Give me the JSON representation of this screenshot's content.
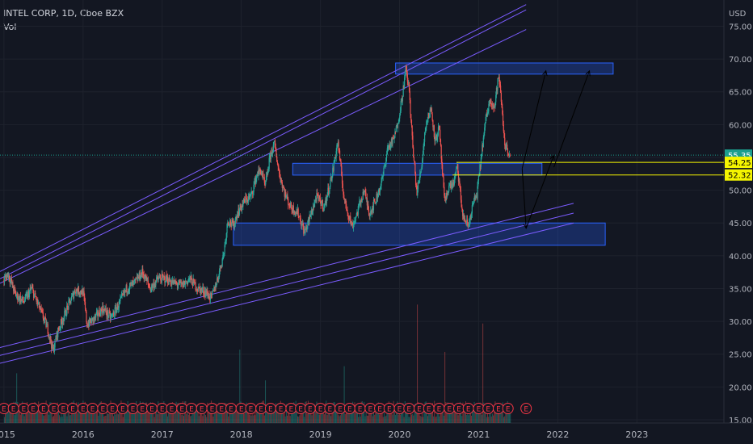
{
  "header": {
    "symbol_line": "INTEL CORP, 1D, Cboe BZX",
    "indicator": "Vol"
  },
  "colors": {
    "background": "#131722",
    "grid": "#1e222d",
    "axis_text": "#b2b5be",
    "up": "#26a69a",
    "down": "#ef5350",
    "channel": "#7b5cff",
    "zone": "#2962ff",
    "level_line": "#f5f500",
    "price_label_bg": "#1b9e8e",
    "level_label_bg": "#f5f500",
    "earnings_ring": "#f23645",
    "arrow": "#000000"
  },
  "chart_data": {
    "type": "candlestick",
    "currency": "USD",
    "x_tick_labels": [
      "2015",
      "2016",
      "2017",
      "2018",
      "2019",
      "2020",
      "2021",
      "2022",
      "2023"
    ],
    "y_tick_labels": [
      "15.00",
      "20.00",
      "25.00",
      "30.00",
      "35.00",
      "40.00",
      "45.00",
      "50.00",
      "55.00",
      "60.00",
      "65.00",
      "70.00",
      "75.00"
    ],
    "ylim": [
      14.5,
      79
    ],
    "xlim": [
      2014.95,
      2024.1
    ],
    "current_price": "55.35",
    "horizontal_levels": [
      {
        "label": "54.25",
        "value": 54.25,
        "x_start": 2020.72
      },
      {
        "label": "52.32",
        "value": 52.32,
        "x_start": 2020.67
      }
    ],
    "zones": [
      {
        "name": "resistance",
        "x": [
          2019.95,
          2022.7
        ],
        "y": [
          67.7,
          69.4
        ]
      },
      {
        "name": "middle",
        "x": [
          2018.65,
          2021.8
        ],
        "y": [
          52.3,
          54.1
        ]
      },
      {
        "name": "support",
        "x": [
          2017.9,
          2022.6
        ],
        "y": [
          41.6,
          45.0
        ]
      }
    ],
    "trend_lines": [
      {
        "x": [
          2014.95,
          2021.6
        ],
        "y": [
          36.5,
          77.5
        ]
      },
      {
        "x": [
          2014.95,
          2021.6
        ],
        "y": [
          37.6,
          78.3
        ]
      },
      {
        "x": [
          2014.95,
          2021.6
        ],
        "y": [
          35.8,
          74.5
        ]
      },
      {
        "x": [
          2014.95,
          2022.2
        ],
        "y": [
          26.0,
          48.0
        ]
      },
      {
        "x": [
          2014.95,
          2022.2
        ],
        "y": [
          24.8,
          46.5
        ]
      },
      {
        "x": [
          2014.95,
          2022.2
        ],
        "y": [
          23.6,
          45.0
        ]
      }
    ],
    "projection_arrows": [
      {
        "x": [
          2021.55,
          2021.85
        ],
        "y": [
          53.3,
          68.2
        ]
      },
      {
        "x": [
          2021.55,
          2021.6
        ],
        "y": [
          53.3,
          44.2
        ]
      },
      {
        "x": [
          2021.6,
          2021.95
        ],
        "y": [
          44.2,
          55.3
        ]
      },
      {
        "x": [
          2021.95,
          2022.4
        ],
        "y": [
          53.5,
          68.2
        ]
      }
    ],
    "price_path": [
      [
        2015.0,
        36.3
      ],
      [
        2015.05,
        37.3
      ],
      [
        2015.15,
        34.0
      ],
      [
        2015.25,
        33.0
      ],
      [
        2015.35,
        35.0
      ],
      [
        2015.45,
        32.0
      ],
      [
        2015.55,
        29.0
      ],
      [
        2015.62,
        25.5
      ],
      [
        2015.68,
        28.5
      ],
      [
        2015.8,
        32.0
      ],
      [
        2015.9,
        34.8
      ],
      [
        2016.0,
        34.5
      ],
      [
        2016.05,
        29.5
      ],
      [
        2016.15,
        30.5
      ],
      [
        2016.25,
        32.0
      ],
      [
        2016.35,
        30.5
      ],
      [
        2016.45,
        32.5
      ],
      [
        2016.55,
        35.0
      ],
      [
        2016.65,
        35.8
      ],
      [
        2016.75,
        37.5
      ],
      [
        2016.85,
        35.0
      ],
      [
        2016.95,
        36.5
      ],
      [
        2017.05,
        36.5
      ],
      [
        2017.15,
        35.8
      ],
      [
        2017.25,
        35.5
      ],
      [
        2017.35,
        36.5
      ],
      [
        2017.45,
        35.0
      ],
      [
        2017.55,
        34.5
      ],
      [
        2017.62,
        33.5
      ],
      [
        2017.7,
        36.5
      ],
      [
        2017.78,
        40.5
      ],
      [
        2017.83,
        45.5
      ],
      [
        2017.9,
        44.5
      ],
      [
        2017.95,
        46.5
      ],
      [
        2018.05,
        48.5
      ],
      [
        2018.12,
        49.0
      ],
      [
        2018.2,
        52.5
      ],
      [
        2018.25,
        53.0
      ],
      [
        2018.3,
        50.5
      ],
      [
        2018.37,
        55.5
      ],
      [
        2018.42,
        57.0
      ],
      [
        2018.48,
        52.5
      ],
      [
        2018.55,
        49.5
      ],
      [
        2018.62,
        47.5
      ],
      [
        2018.72,
        46.5
      ],
      [
        2018.8,
        43.5
      ],
      [
        2018.87,
        46.0
      ],
      [
        2018.95,
        49.0
      ],
      [
        2019.05,
        47.5
      ],
      [
        2019.15,
        52.5
      ],
      [
        2019.22,
        57.5
      ],
      [
        2019.3,
        48.5
      ],
      [
        2019.4,
        44.5
      ],
      [
        2019.45,
        46.0
      ],
      [
        2019.55,
        50.0
      ],
      [
        2019.62,
        46.5
      ],
      [
        2019.7,
        48.5
      ],
      [
        2019.78,
        51.5
      ],
      [
        2019.85,
        56.5
      ],
      [
        2019.92,
        57.5
      ],
      [
        2019.97,
        59.8
      ],
      [
        2020.03,
        64.0
      ],
      [
        2020.08,
        68.5
      ],
      [
        2020.12,
        65.5
      ],
      [
        2020.17,
        56.0
      ],
      [
        2020.22,
        49.5
      ],
      [
        2020.28,
        54.0
      ],
      [
        2020.33,
        60.0
      ],
      [
        2020.4,
        62.5
      ],
      [
        2020.45,
        57.5
      ],
      [
        2020.5,
        59.5
      ],
      [
        2020.57,
        48.0
      ],
      [
        2020.62,
        50.5
      ],
      [
        2020.68,
        51.0
      ],
      [
        2020.73,
        53.5
      ],
      [
        2020.8,
        46.0
      ],
      [
        2020.87,
        44.5
      ],
      [
        2020.93,
        48.0
      ],
      [
        2020.98,
        49.5
      ],
      [
        2021.05,
        57.0
      ],
      [
        2021.1,
        61.5
      ],
      [
        2021.15,
        64.0
      ],
      [
        2021.2,
        62.5
      ],
      [
        2021.25,
        67.5
      ],
      [
        2021.28,
        64.5
      ],
      [
        2021.33,
        57.0
      ],
      [
        2021.37,
        56.0
      ],
      [
        2021.4,
        55.35
      ]
    ],
    "volume": {
      "y_fraction_max": 0.28,
      "spikes": [
        {
          "x": 2017.98,
          "h": 0.62
        },
        {
          "x": 2020.22,
          "h": 1.0
        },
        {
          "x": 2020.57,
          "h": 0.6
        },
        {
          "x": 2021.05,
          "h": 0.84
        },
        {
          "x": 2019.3,
          "h": 0.48
        },
        {
          "x": 2015.15,
          "h": 0.42
        },
        {
          "x": 2018.3,
          "h": 0.36
        }
      ]
    },
    "earnings_x": [
      2015.0,
      2015.12,
      2015.25,
      2015.37,
      2015.5,
      2015.63,
      2015.75,
      2015.87,
      2016.0,
      2016.12,
      2016.25,
      2016.37,
      2016.5,
      2016.63,
      2016.75,
      2016.87,
      2017.0,
      2017.12,
      2017.25,
      2017.37,
      2017.5,
      2017.63,
      2017.75,
      2017.87,
      2018.0,
      2018.12,
      2018.25,
      2018.37,
      2018.5,
      2018.63,
      2018.75,
      2018.87,
      2019.0,
      2019.12,
      2019.25,
      2019.37,
      2019.5,
      2019.63,
      2019.75,
      2019.87,
      2020.0,
      2020.12,
      2020.25,
      2020.37,
      2020.5,
      2020.63,
      2020.75,
      2020.87,
      2021.0,
      2021.12,
      2021.25,
      2021.37,
      2021.6
    ],
    "earnings_label": "E"
  }
}
